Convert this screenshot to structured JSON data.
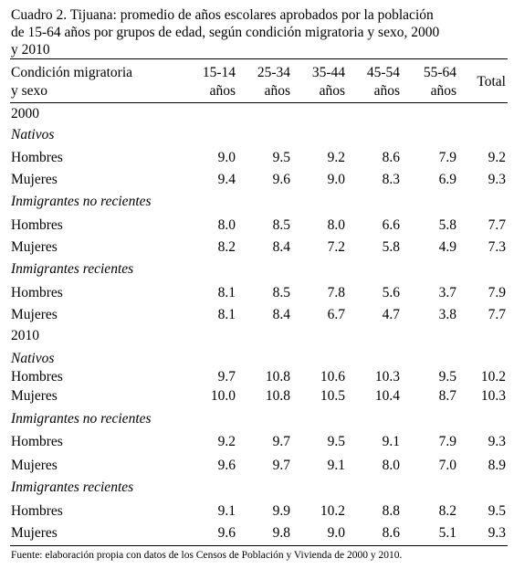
{
  "caption": {
    "line1": "Cuadro 2. Tijuana: promedio de años escolares aprobados por la población",
    "line2": "de 15-64 años por grupos de edad, según condición migratoria  y sexo, 2000",
    "line3": "y 2010"
  },
  "header": {
    "stub_line1": "Condición migratoria",
    "stub_line2": "y sexo",
    "columns": [
      {
        "line1": "15-14",
        "line2": "años"
      },
      {
        "line1": "25-34",
        "line2": "años"
      },
      {
        "line1": "35-44",
        "line2": "años"
      },
      {
        "line1": "45-54",
        "line2": "años"
      },
      {
        "line1": "55-64",
        "line2": "años"
      }
    ],
    "total": "Total"
  },
  "rows": [
    {
      "label": "2000",
      "style": "year",
      "values": []
    },
    {
      "label": "Nativos",
      "style": "group",
      "values": []
    },
    {
      "label": "Hombres",
      "style": "data",
      "values": [
        "9.0",
        "9.5",
        "9.2",
        "8.6",
        "7.9",
        "9.2"
      ]
    },
    {
      "label": "Mujeres",
      "style": "data",
      "values": [
        "9.4",
        "9.6",
        "9.0",
        "8.3",
        "6.9",
        "9.3"
      ]
    },
    {
      "label": "Inmigrantes no recientes",
      "style": "group",
      "values": []
    },
    {
      "label": "Hombres",
      "style": "data",
      "values": [
        "8.0",
        "8.5",
        "8.0",
        "6.6",
        "5.8",
        "7.7"
      ]
    },
    {
      "label": "Mujeres",
      "style": "data",
      "values": [
        "8.2",
        "8.4",
        "7.2",
        "5.8",
        "4.9",
        "7.3"
      ]
    },
    {
      "label": "Inmigrantes recientes",
      "style": "group",
      "values": []
    },
    {
      "label": "Hombres",
      "style": "data",
      "values": [
        "8.1",
        "8.5",
        "7.8",
        "5.6",
        "3.7",
        "7.9"
      ]
    },
    {
      "label": "Mujeres",
      "style": "data",
      "values": [
        "8.1",
        "8.4",
        "6.7",
        "4.7",
        "3.8",
        "7.7"
      ]
    },
    {
      "label": "2010",
      "style": "year",
      "values": []
    },
    {
      "label": "Nativos",
      "style": "group",
      "values": []
    },
    {
      "label": "Hombres",
      "style": "data",
      "values": [
        "9.7",
        "10.8",
        "10.6",
        "10.3",
        "9.5",
        "10.2"
      ]
    },
    {
      "label": "Mujeres",
      "style": "data",
      "values": [
        "10.0",
        "10.8",
        "10.5",
        "10.4",
        "8.7",
        "10.3"
      ]
    },
    {
      "label": "Inmigrantes no recientes",
      "style": "group",
      "values": []
    },
    {
      "label": "Hombres",
      "style": "data",
      "values": [
        "9.2",
        "9.7",
        "9.5",
        "9.1",
        "7.9",
        "9.3"
      ]
    },
    {
      "label": "Mujeres",
      "style": "data",
      "values": [
        "9.6",
        "9.7",
        "9.1",
        "8.0",
        "7.0",
        "8.9"
      ]
    },
    {
      "label": "Inmigrantes recientes",
      "style": "group",
      "values": []
    },
    {
      "label": "Hombres",
      "style": "data",
      "values": [
        "9.1",
        "9.9",
        "10.2",
        "8.8",
        "8.2",
        "9.5"
      ]
    },
    {
      "label": "Mujeres",
      "style": "data",
      "values": [
        "9.6",
        "9.8",
        "9.0",
        "8.6",
        "5.1",
        "9.3"
      ]
    }
  ],
  "source": "Fuente: elaboración propia con datos de los Censos de Población y Vivienda de 2000 y 2010."
}
